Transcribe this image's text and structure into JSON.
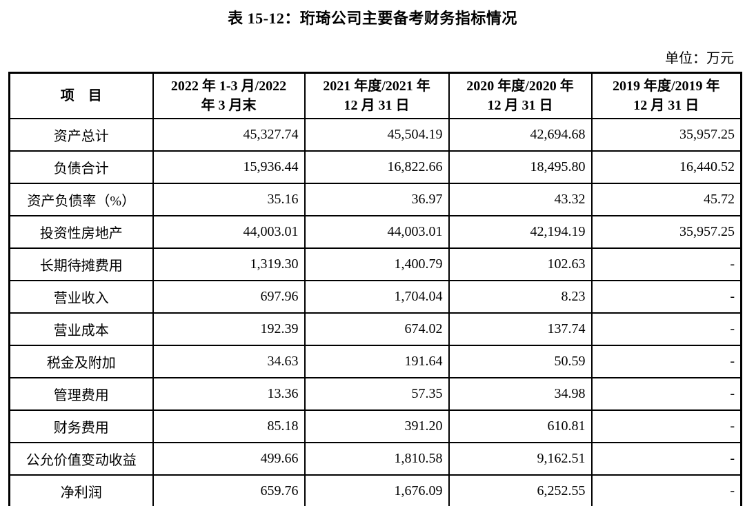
{
  "title": "表 15-12：珩琦公司主要备考财务指标情况",
  "unit_label": "单位：万元",
  "table": {
    "headers": [
      "项　目",
      "2022 年 1-3 月/2022\n年 3 月末",
      "2021 年度/2021 年\n12 月 31 日",
      "2020 年度/2020 年\n12 月 31 日",
      "2019 年度/2019 年\n12 月 31 日"
    ],
    "rows": [
      {
        "label": "资产总计",
        "values": [
          "45,327.74",
          "45,504.19",
          "42,694.68",
          "35,957.25"
        ]
      },
      {
        "label": "负债合计",
        "values": [
          "15,936.44",
          "16,822.66",
          "18,495.80",
          "16,440.52"
        ]
      },
      {
        "label": "资产负债率（%）",
        "values": [
          "35.16",
          "36.97",
          "43.32",
          "45.72"
        ]
      },
      {
        "label": "投资性房地产",
        "values": [
          "44,003.01",
          "44,003.01",
          "42,194.19",
          "35,957.25"
        ]
      },
      {
        "label": "长期待摊费用",
        "values": [
          "1,319.30",
          "1,400.79",
          "102.63",
          "-"
        ]
      },
      {
        "label": "营业收入",
        "values": [
          "697.96",
          "1,704.04",
          "8.23",
          "-"
        ]
      },
      {
        "label": "营业成本",
        "values": [
          "192.39",
          "674.02",
          "137.74",
          "-"
        ]
      },
      {
        "label": "税金及附加",
        "values": [
          "34.63",
          "191.64",
          "50.59",
          "-"
        ]
      },
      {
        "label": "管理费用",
        "values": [
          "13.36",
          "57.35",
          "34.98",
          "-"
        ]
      },
      {
        "label": "财务费用",
        "values": [
          "85.18",
          "391.20",
          "610.81",
          "-"
        ]
      },
      {
        "label": "公允价值变动收益",
        "values": [
          "499.66",
          "1,810.58",
          "9,162.51",
          "-"
        ]
      },
      {
        "label": "净利润",
        "values": [
          "659.76",
          "1,676.09",
          "6,252.55",
          "-"
        ]
      }
    ]
  }
}
